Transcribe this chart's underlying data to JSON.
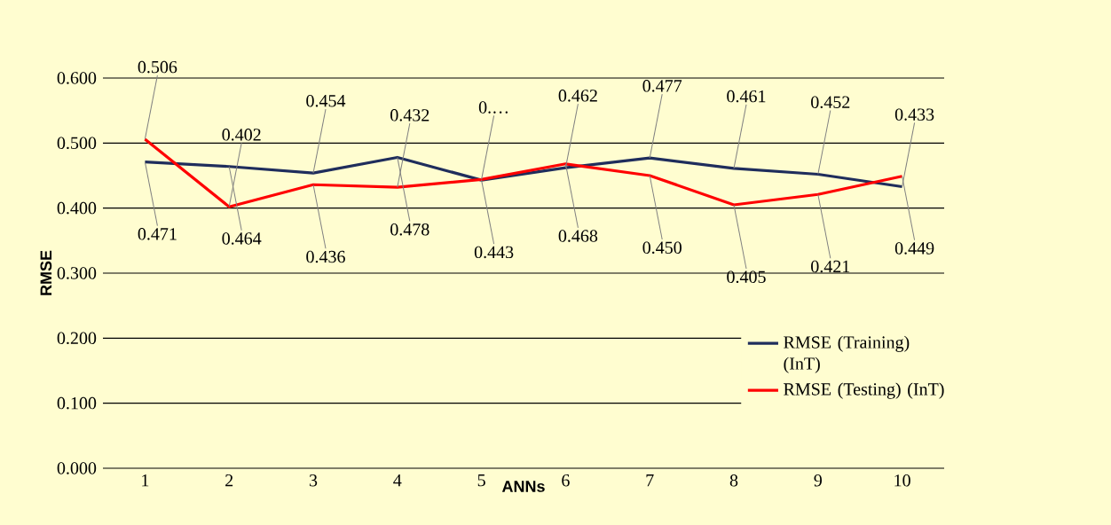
{
  "chart_data": {
    "type": "line",
    "xlabel": "ANNs",
    "ylabel": "RMSE",
    "categories": [
      "1",
      "2",
      "3",
      "4",
      "5",
      "6",
      "7",
      "8",
      "9",
      "10"
    ],
    "series": [
      {
        "name": "RMSE (Training) (InT)",
        "color": "#1f2d5c",
        "values": [
          0.471,
          0.464,
          0.454,
          0.478,
          0.443,
          0.462,
          0.477,
          0.461,
          0.452,
          0.433
        ],
        "value_labels": [
          "0.471",
          "0.464",
          "0.454",
          "0.478",
          "0.443",
          "0.462",
          "0.477",
          "0.461",
          "0.452",
          "0.433"
        ]
      },
      {
        "name": "RMSE (Testing) (InT)",
        "color": "#ff0000",
        "values": [
          0.506,
          0.402,
          0.436,
          0.432,
          0.444,
          0.468,
          0.45,
          0.405,
          0.421,
          0.449
        ],
        "value_labels": [
          "0.506",
          "0.402",
          "0.436",
          "0.432",
          "0.…",
          "0.468",
          "0.450",
          "0.405",
          "0.421",
          "0.449"
        ]
      }
    ],
    "ylim": [
      0,
      0.6
    ],
    "yticks": [
      {
        "value": 0,
        "label": "0.000"
      },
      {
        "value": 0.1,
        "label": "0.100"
      },
      {
        "value": 0.2,
        "label": "0.200"
      },
      {
        "value": 0.3,
        "label": "0.300"
      },
      {
        "value": 0.4,
        "label": "0.400"
      },
      {
        "value": 0.5,
        "label": "0.500"
      },
      {
        "value": 0.6,
        "label": "0.600"
      }
    ],
    "grid": "y",
    "legend": "right",
    "marker": "none",
    "line_style": "solid"
  }
}
